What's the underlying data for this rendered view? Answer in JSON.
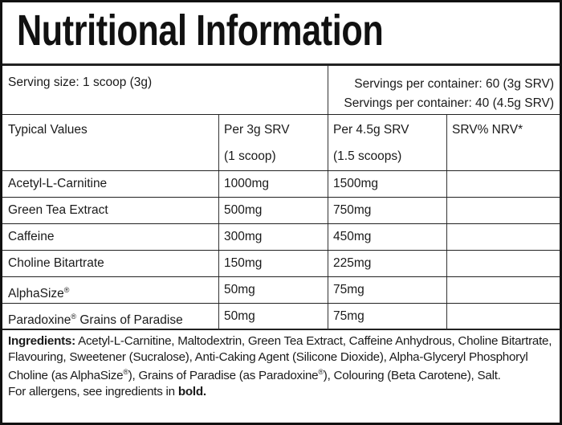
{
  "title": "Nutritional Information",
  "serving": {
    "size": "Serving size: 1 scoop (3g)",
    "per_container": [
      "Servings per container: 60 (3g SRV)",
      "Servings per container: 40 (4.5g SRV)"
    ]
  },
  "table": {
    "header": [
      [
        "Typical Values"
      ],
      [
        "Per 3g SRV",
        "(1 scoop)"
      ],
      [
        "Per 4.5g SRV",
        "(1.5 scoops)"
      ],
      [
        "SRV% NRV*"
      ]
    ],
    "rows": [
      [
        "Acetyl-L-Carnitine",
        "1000mg",
        "1500mg"
      ],
      [
        "Green Tea Extract",
        "500mg",
        "750mg"
      ],
      [
        "Caffeine",
        "300mg",
        "450mg"
      ],
      [
        "Choline Bitartrate",
        "150mg",
        "225mg"
      ],
      [
        "AlphaSize®",
        "50mg",
        "75mg"
      ],
      [
        "Paradoxine® Grains of Paradise",
        "50mg",
        "75mg"
      ]
    ]
  },
  "ingredients": {
    "label": "Ingredients:",
    "text": "Acetyl-L-Carnitine, Maltodextrin, Green Tea Extract, Caffeine Anhydrous, Choline Bitartrate, Flavouring, Sweetener (Sucralose), Anti-Caking Agent (Silicone Dioxide), Alpha-Glyceryl Phosphoryl Choline (as AlphaSize®), Grains of Paradise (as Paradoxine®), Colouring (Beta Carotene), Salt.",
    "allergen_note": "For allergens, see ingredients in",
    "allergen_bold": "bold."
  }
}
